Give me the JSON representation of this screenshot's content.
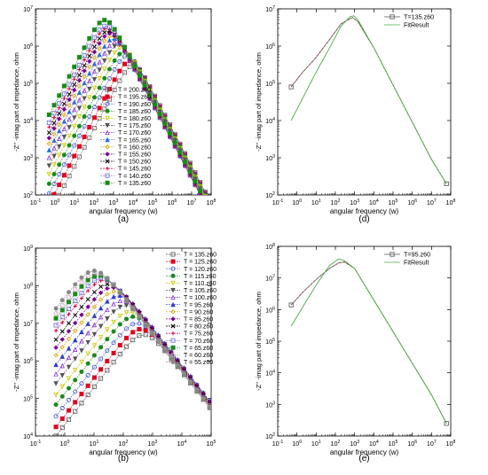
{
  "panels": [
    {
      "id": "a",
      "label": "(a)",
      "xlabel": "angular frequency (w)",
      "ylabel": "-Z'' -imag part of impedance, ohm"
    },
    {
      "id": "d",
      "label": "(d)",
      "xlabel": "angular frequency (w)",
      "ylabel": "-Z'' -imag part of impedance, ohm"
    },
    {
      "id": "b",
      "label": "(b)",
      "xlabel": "angular frequency (w)",
      "ylabel": "-Z'' -imag part of impedance, ohm"
    },
    {
      "id": "e",
      "label": "(e)",
      "xlabel": "angular frequency (w)",
      "ylabel": "-Z'' -imag part of impedance, ohm"
    }
  ],
  "chart_data": [
    {
      "id": "a",
      "type": "scatter",
      "xscale": "log",
      "yscale": "log",
      "xlim": [
        0.1,
        100000000
      ],
      "ylim": [
        100,
        10000000
      ],
      "xticks": [
        "10-1",
        "100",
        "101",
        "102",
        "103",
        "104",
        "105",
        "106",
        "107",
        "108"
      ],
      "yticks": [
        "102",
        "103",
        "104",
        "105",
        "106",
        "107"
      ],
      "title": "",
      "xlabel": "angular frequency (w)",
      "ylabel": "-Z'' -imag part of impedance, ohm",
      "legend": {
        "placement": "bottom-center",
        "entries": [
          "T = 200.z60",
          "T = 195.z60",
          "T = 190.z60",
          "T = 185.z60",
          "T = 180.z60",
          "T = 175.z60",
          "T = 170.z60",
          "T = 165.z60",
          "T = 160.z60",
          "T = 155.z60",
          "T = 150.z60",
          "T = 145.z60",
          "T = 140.z60",
          "T = 135.z60"
        ]
      },
      "model": "Debye-like arc: log10(-Z'') peaks at log10(w_peak) and falls on both sides",
      "series": [
        {
          "name": "T = 200.z60",
          "color": "#666666",
          "marker": "square-open",
          "peak_w": 10000,
          "peak_z": 300000
        },
        {
          "name": "T = 195.z60",
          "color": "#e0001a",
          "marker": "square",
          "peak_w": 7000,
          "peak_z": 400000
        },
        {
          "name": "T = 190.z60",
          "color": "#3a4ecf",
          "marker": "circle-open",
          "peak_w": 5000,
          "peak_z": 550000
        },
        {
          "name": "T = 185.z60",
          "color": "#178a1e",
          "marker": "circle",
          "peak_w": 3500,
          "peak_z": 700000
        },
        {
          "name": "T = 180.z60",
          "color": "#c8c800",
          "marker": "triangle-down-open",
          "peak_w": 2500,
          "peak_z": 900000
        },
        {
          "name": "T = 175.z60",
          "color": "#555555",
          "marker": "triangle-down",
          "peak_w": 1800,
          "peak_z": 1100000
        },
        {
          "name": "T = 170.z60",
          "color": "#8a3ac8",
          "marker": "triangle-open",
          "peak_w": 1300,
          "peak_z": 1300000
        },
        {
          "name": "T = 165.z60",
          "color": "#2a6fd6",
          "marker": "triangle",
          "peak_w": 1000,
          "peak_z": 1600000
        },
        {
          "name": "T = 160.z60",
          "color": "#d6a000",
          "marker": "diamond-open",
          "peak_w": 800,
          "peak_z": 1900000
        },
        {
          "name": "T = 155.z60",
          "color": "#7a0090",
          "marker": "diamond",
          "peak_w": 650,
          "peak_z": 2200000
        },
        {
          "name": "T = 150.z60",
          "color": "#000000",
          "marker": "cross",
          "peak_w": 550,
          "peak_z": 2600000
        },
        {
          "name": "T = 145.z60",
          "color": "#d0003a",
          "marker": "plus",
          "peak_w": 450,
          "peak_z": 3000000
        },
        {
          "name": "T = 140.z60",
          "color": "#6a6ad8",
          "marker": "square-open",
          "peak_w": 400,
          "peak_z": 3500000
        },
        {
          "name": "T = 135.z60",
          "color": "#1a8a1a",
          "marker": "square",
          "peak_w": 350,
          "peak_z": 5000000
        }
      ]
    },
    {
      "id": "d",
      "type": "line",
      "xscale": "log",
      "yscale": "log",
      "xlim": [
        0.1,
        100000000
      ],
      "ylim": [
        100,
        10000000
      ],
      "xticks": [
        "10-1",
        "100",
        "101",
        "102",
        "103",
        "104",
        "105",
        "106",
        "107",
        "108"
      ],
      "yticks": [
        "102",
        "103",
        "104",
        "105",
        "106",
        "107"
      ],
      "title": "",
      "xlabel": "angular frequency (w)",
      "ylabel": "-Z'' -imag part of impedance, ohm",
      "legend": {
        "placement": "top-right",
        "entries": [
          "T=135.z60",
          "FitResult"
        ]
      },
      "series": [
        {
          "name": "T=135.z60",
          "color": "#555555",
          "style": "data-dashed",
          "x": [
            0.5,
            2,
            10,
            50,
            200,
            600,
            800,
            1500,
            10000,
            100000,
            1000000,
            10000000,
            60000000
          ],
          "y": [
            80000,
            200000,
            500000,
            1500000,
            4000000,
            5500000,
            5800000,
            4500000,
            900000,
            90000,
            9000,
            900,
            200
          ]
        },
        {
          "name": "FitResult",
          "color": "#4caa4c",
          "style": "solid",
          "x": [
            0.5,
            2,
            10,
            50,
            200,
            600,
            900,
            1500,
            10000,
            100000,
            1000000,
            10000000,
            60000000
          ],
          "y": [
            10000,
            40000,
            200000,
            900000,
            3500000,
            6200000,
            6500000,
            5000000,
            900000,
            90000,
            9000,
            900,
            200
          ]
        }
      ]
    },
    {
      "id": "b",
      "type": "scatter",
      "xscale": "log",
      "yscale": "log",
      "xlim": [
        0.1,
        100000
      ],
      "ylim": [
        10000,
        1000000000
      ],
      "xticks": [
        "10-1",
        "100",
        "101",
        "102",
        "103",
        "104",
        "105"
      ],
      "yticks": [
        "104",
        "105",
        "106",
        "107",
        "108",
        "109"
      ],
      "title": "",
      "xlabel": "angular frequency (w)",
      "ylabel": "-Z'' -imag part of impedance, ohm",
      "legend": {
        "placement": "top-right",
        "entries": [
          "T = 135.z60",
          "T = 125.z60",
          "T = 120.z60",
          "T = 115.z60",
          "T = 110.z60",
          "T = 105.z60",
          "T = 100.z60",
          "T = 95.z60",
          "T = 90.z60",
          "T = 85.z60",
          "T = 80.z60",
          "T = 75.z60",
          "T = 70.z60",
          "T = 65.z60",
          "T = 60.z60",
          "T = 55.z60"
        ]
      },
      "model": "Debye-like arc: log10(-Z'') peaks at log10(w_peak) and falls on both sides",
      "series": [
        {
          "name": "T = 135.z60",
          "color": "#555555",
          "marker": "square-open",
          "peak_w": 500,
          "peak_z": 5000000
        },
        {
          "name": "T = 125.z60",
          "color": "#e0001a",
          "marker": "square",
          "peak_w": 400,
          "peak_z": 7000000
        },
        {
          "name": "T = 120.z60",
          "color": "#3a4ecf",
          "marker": "circle-open",
          "peak_w": 300,
          "peak_z": 10000000
        },
        {
          "name": "T = 115.z60",
          "color": "#178a1e",
          "marker": "circle",
          "peak_w": 220,
          "peak_z": 15000000
        },
        {
          "name": "T = 110.z60",
          "color": "#c8c800",
          "marker": "triangle-down-open",
          "peak_w": 160,
          "peak_z": 20000000
        },
        {
          "name": "T = 105.z60",
          "color": "#555555",
          "marker": "triangle-down",
          "peak_w": 120,
          "peak_z": 30000000
        },
        {
          "name": "T = 100.z60",
          "color": "#8a3ac8",
          "marker": "triangle-open",
          "peak_w": 90,
          "peak_z": 40000000
        },
        {
          "name": "T = 95.z60",
          "color": "#2a3ad6",
          "marker": "triangle",
          "peak_w": 70,
          "peak_z": 55000000
        },
        {
          "name": "T = 90.z60",
          "color": "#d6a000",
          "marker": "diamond-open",
          "peak_w": 50,
          "peak_z": 70000000
        },
        {
          "name": "T = 85.z60",
          "color": "#7a0090",
          "marker": "diamond",
          "peak_w": 40,
          "peak_z": 90000000
        },
        {
          "name": "T = 80.z60",
          "color": "#000000",
          "marker": "cross",
          "peak_w": 30,
          "peak_z": 110000000
        },
        {
          "name": "T = 75.z60",
          "color": "#d0003a",
          "marker": "plus",
          "peak_w": 22,
          "peak_z": 140000000
        },
        {
          "name": "T = 70.z60",
          "color": "#6a6ad8",
          "marker": "square-open",
          "peak_w": 18,
          "peak_z": 160000000
        },
        {
          "name": "T = 65.z60",
          "color": "#1a8a1a",
          "marker": "square",
          "peak_w": 14,
          "peak_z": 190000000
        },
        {
          "name": "T = 60.z60",
          "color": "#d0a0c0",
          "marker": "circle-open",
          "peak_w": 12,
          "peak_z": 220000000
        },
        {
          "name": "T = 55.z60",
          "color": "#888888",
          "marker": "circle",
          "peak_w": 10,
          "peak_z": 250000000
        }
      ]
    },
    {
      "id": "e",
      "type": "line",
      "xscale": "log",
      "yscale": "log",
      "xlim": [
        0.1,
        100000000
      ],
      "ylim": [
        100,
        100000000
      ],
      "xticks": [
        "10-1",
        "100",
        "101",
        "102",
        "103",
        "104",
        "105",
        "106",
        "107",
        "108"
      ],
      "yticks": [
        "102",
        "103",
        "104",
        "105",
        "106",
        "107",
        "108"
      ],
      "title": "",
      "xlabel": "angular frequency (w)",
      "ylabel": "-Z'' -imag part of impedance, ohm",
      "legend": {
        "placement": "top-right",
        "entries": [
          "T=95.z60",
          "FitResult"
        ]
      },
      "series": [
        {
          "name": "T=95.z60",
          "color": "#555555",
          "style": "data-dashed",
          "x": [
            0.5,
            2,
            10,
            50,
            150,
            300,
            1000,
            10000,
            100000,
            1000000,
            10000000,
            60000000
          ],
          "y": [
            1400000,
            3500000,
            9000000,
            20000000,
            30000000,
            32000000,
            20000000,
            2000000,
            200000,
            20000,
            2000,
            250
          ]
        },
        {
          "name": "FitResult",
          "color": "#4caa4c",
          "style": "solid",
          "x": [
            0.5,
            2,
            10,
            50,
            150,
            300,
            1000,
            10000,
            100000,
            1000000,
            10000000,
            60000000
          ],
          "y": [
            300000,
            1200000,
            6000000,
            25000000,
            40000000,
            35000000,
            20000000,
            2000000,
            200000,
            20000,
            2000,
            250
          ]
        }
      ]
    }
  ]
}
